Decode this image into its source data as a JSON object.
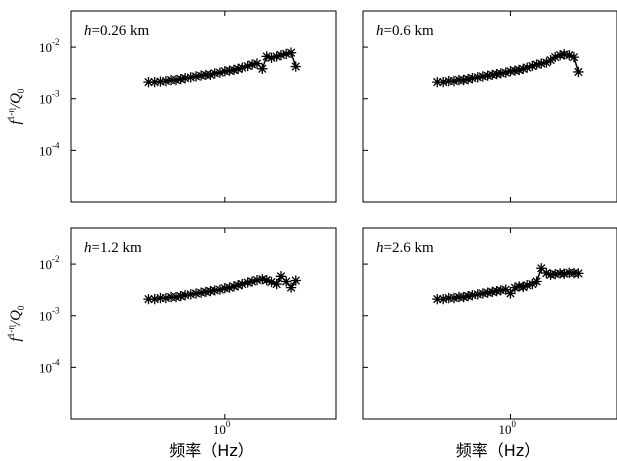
{
  "chart_data": [
    {
      "type": "scatter",
      "panel_label": {
        "symbol": "h",
        "text": "=0.26 km"
      },
      "ylabel": {
        "base": "f",
        "superscript": "1-η",
        "rest": "/Q",
        "subscript": "0"
      },
      "xlabel": "",
      "xscale": "log",
      "yscale": "log",
      "xlim": [
        0.2,
        3.2
      ],
      "ylim": [
        1e-05,
        0.05
      ],
      "yticks": [
        {
          "base": "10",
          "exp": "-2",
          "value": 0.01
        },
        {
          "base": "10",
          "exp": "-3",
          "value": 0.001
        },
        {
          "base": "10",
          "exp": "-4",
          "value": 0.0001
        }
      ],
      "xticks": [],
      "grid": false,
      "series": [
        {
          "marker": "*",
          "line": true,
          "x": [
            0.45,
            0.48,
            0.51,
            0.54,
            0.57,
            0.6,
            0.63,
            0.66,
            0.7,
            0.74,
            0.78,
            0.82,
            0.86,
            0.9,
            0.95,
            1.0,
            1.05,
            1.1,
            1.15,
            1.2,
            1.27,
            1.33,
            1.4,
            1.48,
            1.55,
            1.63,
            1.72,
            1.8,
            1.9,
            2.0,
            2.1
          ],
          "y": [
            0.0021,
            0.0021,
            0.00215,
            0.0022,
            0.0023,
            0.0023,
            0.0024,
            0.0025,
            0.0026,
            0.0027,
            0.0028,
            0.0029,
            0.0029,
            0.0031,
            0.0032,
            0.0034,
            0.0035,
            0.0036,
            0.0038,
            0.004,
            0.0043,
            0.0046,
            0.0048,
            0.0038,
            0.0066,
            0.0062,
            0.0066,
            0.007,
            0.0074,
            0.0078,
            0.0042
          ]
        }
      ]
    },
    {
      "type": "scatter",
      "panel_label": {
        "symbol": "h",
        "text": "=0.6 km"
      },
      "xlabel": "",
      "ylabel": "",
      "xscale": "log",
      "yscale": "log",
      "xlim": [
        0.2,
        3.2
      ],
      "ylim": [
        1e-05,
        0.05
      ],
      "yticks": [],
      "xticks": [],
      "grid": false,
      "series": [
        {
          "marker": "*",
          "line": true,
          "x": [
            0.45,
            0.48,
            0.51,
            0.54,
            0.57,
            0.6,
            0.63,
            0.66,
            0.7,
            0.74,
            0.78,
            0.82,
            0.86,
            0.9,
            0.95,
            1.0,
            1.05,
            1.1,
            1.15,
            1.2,
            1.27,
            1.33,
            1.4,
            1.48,
            1.55,
            1.63,
            1.72,
            1.8,
            1.9,
            2.0,
            2.1
          ],
          "y": [
            0.0021,
            0.0021,
            0.0022,
            0.0022,
            0.0023,
            0.0023,
            0.0024,
            0.0025,
            0.0026,
            0.0027,
            0.0028,
            0.0029,
            0.003,
            0.0031,
            0.0032,
            0.0034,
            0.0035,
            0.0036,
            0.0038,
            0.004,
            0.0043,
            0.0046,
            0.0048,
            0.005,
            0.0056,
            0.0064,
            0.007,
            0.0072,
            0.007,
            0.0064,
            0.0033
          ]
        }
      ]
    },
    {
      "type": "scatter",
      "panel_label": {
        "symbol": "h",
        "text": "=1.2 km"
      },
      "ylabel": {
        "base": "f",
        "superscript": "1-η",
        "rest": "/Q",
        "subscript": "0"
      },
      "xlabel": "频率（Hz）",
      "xscale": "log",
      "yscale": "log",
      "xlim": [
        0.2,
        3.2
      ],
      "ylim": [
        1e-05,
        0.05
      ],
      "yticks": [
        {
          "base": "10",
          "exp": "-2",
          "value": 0.01
        },
        {
          "base": "10",
          "exp": "-3",
          "value": 0.001
        },
        {
          "base": "10",
          "exp": "-4",
          "value": 0.0001
        }
      ],
      "xticks": [
        {
          "base": "10",
          "exp": "0",
          "value": 1
        }
      ],
      "grid": false,
      "series": [
        {
          "marker": "*",
          "line": true,
          "x": [
            0.45,
            0.48,
            0.51,
            0.54,
            0.57,
            0.6,
            0.63,
            0.66,
            0.7,
            0.74,
            0.78,
            0.82,
            0.86,
            0.9,
            0.95,
            1.0,
            1.05,
            1.1,
            1.15,
            1.2,
            1.27,
            1.33,
            1.4,
            1.48,
            1.55,
            1.63,
            1.72,
            1.8,
            1.9,
            2.0,
            2.1
          ],
          "y": [
            0.0021,
            0.0021,
            0.0022,
            0.0022,
            0.0023,
            0.0023,
            0.0024,
            0.0025,
            0.0026,
            0.0027,
            0.0028,
            0.0029,
            0.003,
            0.0031,
            0.0032,
            0.0034,
            0.0035,
            0.0037,
            0.0039,
            0.0041,
            0.0044,
            0.0046,
            0.0049,
            0.0051,
            0.0049,
            0.0045,
            0.0041,
            0.0058,
            0.0046,
            0.0035,
            0.0048
          ]
        }
      ]
    },
    {
      "type": "scatter",
      "panel_label": {
        "symbol": "h",
        "text": "=2.6 km"
      },
      "xlabel": "频率（Hz）",
      "ylabel": "",
      "xscale": "log",
      "yscale": "log",
      "xlim": [
        0.2,
        3.2
      ],
      "ylim": [
        1e-05,
        0.05
      ],
      "yticks": [],
      "xticks": [
        {
          "base": "10",
          "exp": "0",
          "value": 1
        }
      ],
      "grid": false,
      "series": [
        {
          "marker": "*",
          "line": true,
          "x": [
            0.45,
            0.48,
            0.51,
            0.54,
            0.57,
            0.6,
            0.63,
            0.66,
            0.7,
            0.74,
            0.78,
            0.82,
            0.86,
            0.9,
            0.95,
            1.0,
            1.05,
            1.1,
            1.15,
            1.2,
            1.27,
            1.33,
            1.4,
            1.48,
            1.55,
            1.63,
            1.72,
            1.8,
            1.9,
            2.0,
            2.1
          ],
          "y": [
            0.0021,
            0.0021,
            0.0022,
            0.0022,
            0.0023,
            0.0023,
            0.0024,
            0.0025,
            0.0026,
            0.0027,
            0.0028,
            0.0029,
            0.003,
            0.0031,
            0.0032,
            0.0027,
            0.0035,
            0.0037,
            0.0036,
            0.0039,
            0.0041,
            0.0046,
            0.0083,
            0.0067,
            0.0062,
            0.0064,
            0.0066,
            0.0065,
            0.0068,
            0.0067,
            0.0066
          ]
        }
      ]
    }
  ]
}
